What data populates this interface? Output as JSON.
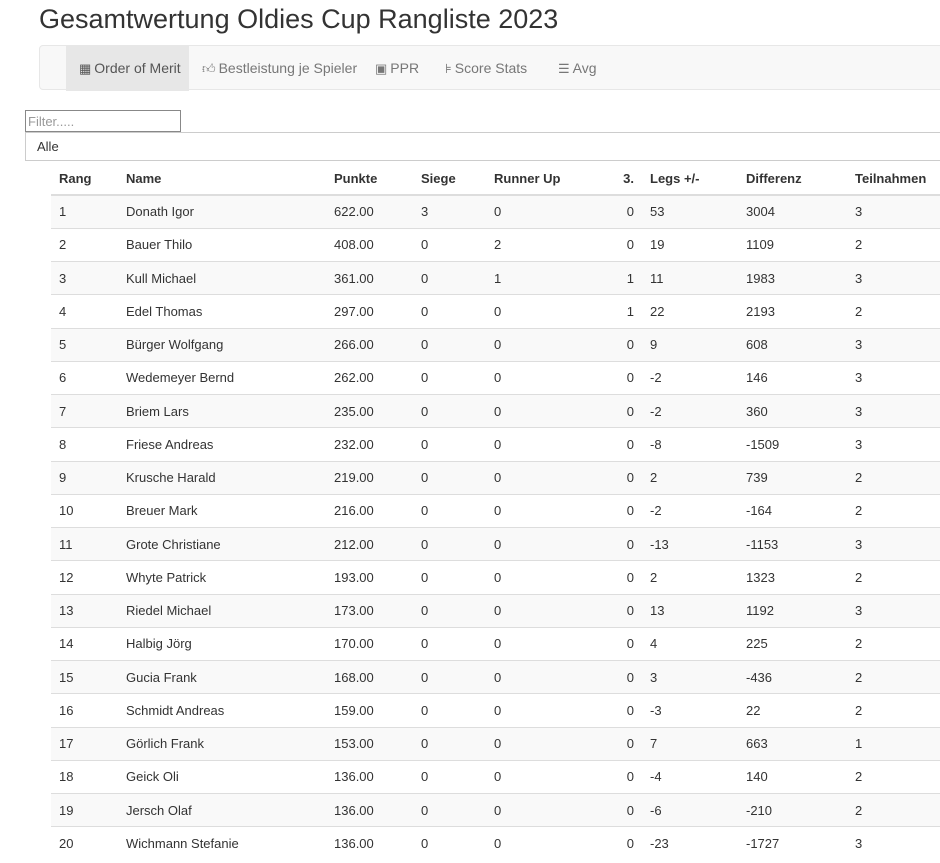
{
  "title": "Gesamtwertung Oldies Cup Rangliste 2023",
  "nav": {
    "tabs": [
      {
        "label": "Order of Merit",
        "icon": "calendar-icon",
        "active": true
      },
      {
        "label": "Bestleistung je Spieler",
        "icon": "thumbs-up-icon",
        "active": false
      },
      {
        "label": "PPR",
        "icon": "subtitles-icon",
        "active": false
      },
      {
        "label": "Score Stats",
        "icon": "tree-icon",
        "active": false
      },
      {
        "label": "Avg",
        "icon": "tasks-icon",
        "active": false
      }
    ]
  },
  "filter": {
    "placeholder": "Filter.....",
    "value": ""
  },
  "group_select": {
    "value": "Alle"
  },
  "table": {
    "columns": [
      "Rang",
      "Name",
      "Punkte",
      "Siege",
      "Runner Up",
      "3.",
      "Legs +/-",
      "Differenz",
      "Teilnahmen"
    ],
    "rows": [
      [
        "1",
        "Donath Igor",
        "622.00",
        "3",
        "0",
        "0",
        "53",
        "3004",
        "3"
      ],
      [
        "2",
        "Bauer Thilo",
        "408.00",
        "0",
        "2",
        "0",
        "19",
        "1109",
        "2"
      ],
      [
        "3",
        "Kull Michael",
        "361.00",
        "0",
        "1",
        "1",
        "11",
        "1983",
        "3"
      ],
      [
        "4",
        "Edel Thomas",
        "297.00",
        "0",
        "0",
        "1",
        "22",
        "2193",
        "2"
      ],
      [
        "5",
        "Bürger Wolfgang",
        "266.00",
        "0",
        "0",
        "0",
        "9",
        "608",
        "3"
      ],
      [
        "6",
        "Wedemeyer Bernd",
        "262.00",
        "0",
        "0",
        "0",
        "-2",
        "146",
        "3"
      ],
      [
        "7",
        "Briem Lars",
        "235.00",
        "0",
        "0",
        "0",
        "-2",
        "360",
        "3"
      ],
      [
        "8",
        "Friese Andreas",
        "232.00",
        "0",
        "0",
        "0",
        "-8",
        "-1509",
        "3"
      ],
      [
        "9",
        "Krusche Harald",
        "219.00",
        "0",
        "0",
        "0",
        "2",
        "739",
        "2"
      ],
      [
        "10",
        "Breuer Mark",
        "216.00",
        "0",
        "0",
        "0",
        "-2",
        "-164",
        "2"
      ],
      [
        "11",
        "Grote Christiane",
        "212.00",
        "0",
        "0",
        "0",
        "-13",
        "-1153",
        "3"
      ],
      [
        "12",
        "Whyte Patrick",
        "193.00",
        "0",
        "0",
        "0",
        "2",
        "1323",
        "2"
      ],
      [
        "13",
        "Riedel Michael",
        "173.00",
        "0",
        "0",
        "0",
        "13",
        "1192",
        "3"
      ],
      [
        "14",
        "Halbig Jörg",
        "170.00",
        "0",
        "0",
        "0",
        "4",
        "225",
        "2"
      ],
      [
        "15",
        "Gucia Frank",
        "168.00",
        "0",
        "0",
        "0",
        "3",
        "-436",
        "2"
      ],
      [
        "16",
        "Schmidt Andreas",
        "159.00",
        "0",
        "0",
        "0",
        "-3",
        "22",
        "2"
      ],
      [
        "17",
        "Görlich Frank",
        "153.00",
        "0",
        "0",
        "0",
        "7",
        "663",
        "1"
      ],
      [
        "18",
        "Geick Oli",
        "136.00",
        "0",
        "0",
        "0",
        "-4",
        "140",
        "2"
      ],
      [
        "19",
        "Jersch Olaf",
        "136.00",
        "0",
        "0",
        "0",
        "-6",
        "-210",
        "2"
      ],
      [
        "20",
        "Wichmann Stefanie",
        "136.00",
        "0",
        "0",
        "0",
        "-23",
        "-1727",
        "3"
      ]
    ]
  }
}
